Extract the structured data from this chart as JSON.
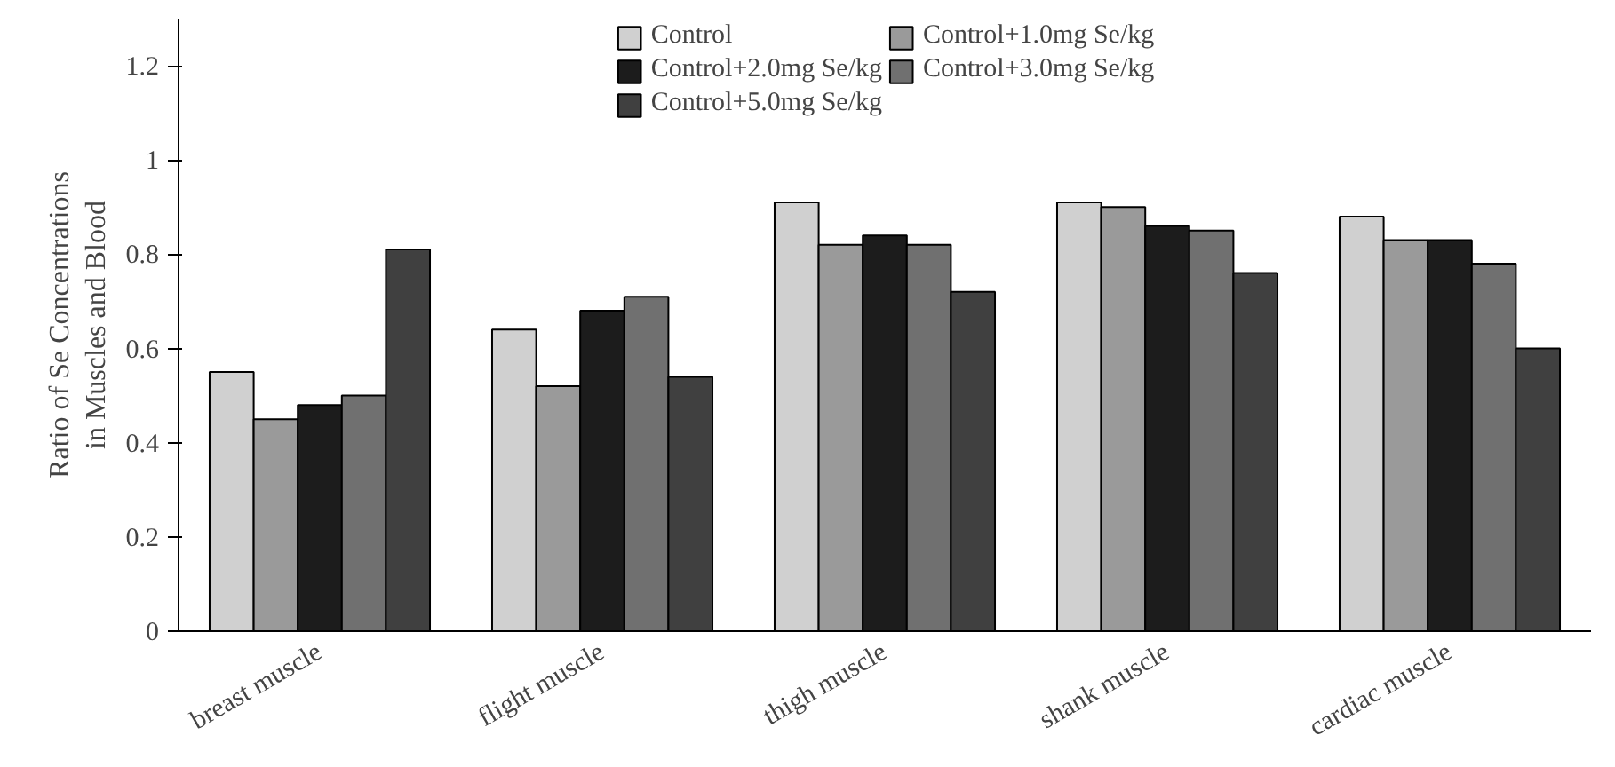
{
  "chart_data": {
    "type": "bar",
    "ylabel": "Ratio of Se Concentrations\nin Muscles and Blood",
    "categories": [
      "breast muscle",
      "flight muscle",
      "thigh muscle",
      "shank muscle",
      "cardiac muscle"
    ],
    "series": [
      {
        "name": "Control",
        "color": "#d0d0d0",
        "values": [
          0.55,
          0.64,
          0.91,
          0.91,
          0.88
        ]
      },
      {
        "name": "Control+1.0mg Se/kg",
        "color": "#9a9a9a",
        "values": [
          0.45,
          0.52,
          0.82,
          0.9,
          0.83
        ]
      },
      {
        "name": "Control+2.0mg Se/kg",
        "color": "#1c1c1c",
        "values": [
          0.48,
          0.68,
          0.84,
          0.86,
          0.83
        ]
      },
      {
        "name": "Control+3.0mg Se/kg",
        "color": "#707070",
        "values": [
          0.5,
          0.71,
          0.82,
          0.85,
          0.78
        ]
      },
      {
        "name": "Control+5.0mg Se/kg",
        "color": "#404040",
        "values": [
          0.81,
          0.54,
          0.72,
          0.76,
          0.6
        ]
      }
    ],
    "ylim": [
      0,
      1.3
    ],
    "yticks": [
      0,
      0.2,
      0.4,
      0.6,
      0.8,
      1,
      1.2
    ],
    "grid": false,
    "legend": "top"
  }
}
